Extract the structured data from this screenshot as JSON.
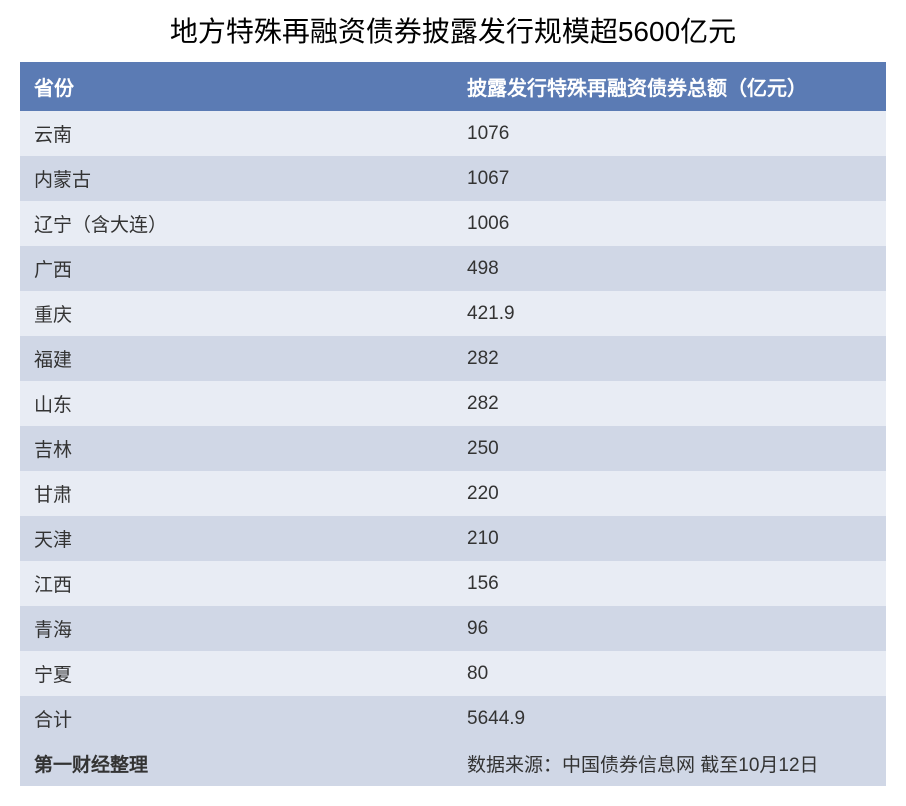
{
  "title": {
    "text": "地方特殊再融资债券披露发行规模超5600亿元",
    "fontsize": 28,
    "color": "#000000"
  },
  "table": {
    "type": "table",
    "header_bg": "#5b7bb4",
    "header_text_color": "#ffffff",
    "header_fontsize": 20,
    "row_fontsize": 19,
    "row_text_color": "#333333",
    "row_odd_bg": "#e8ecf4",
    "row_even_bg": "#d0d7e6",
    "footer_bg": "#d0d7e6",
    "columns": [
      "省份",
      "披露发行特殊再融资债券总额（亿元）"
    ],
    "rows": [
      [
        "云南",
        "1076"
      ],
      [
        "内蒙古",
        "1067"
      ],
      [
        "辽宁（含大连）",
        "1006"
      ],
      [
        "广西",
        "498"
      ],
      [
        "重庆",
        "421.9"
      ],
      [
        "福建",
        "282"
      ],
      [
        "山东",
        "282"
      ],
      [
        "吉林",
        "250"
      ],
      [
        "甘肃",
        "220"
      ],
      [
        "天津",
        "210"
      ],
      [
        "江西",
        "156"
      ],
      [
        "青海",
        "96"
      ],
      [
        "宁夏",
        "80"
      ],
      [
        "合计",
        "5644.9"
      ]
    ],
    "footer": {
      "credit": "第一财经整理",
      "source": "数据来源：中国债券信息网 截至10月12日"
    }
  }
}
